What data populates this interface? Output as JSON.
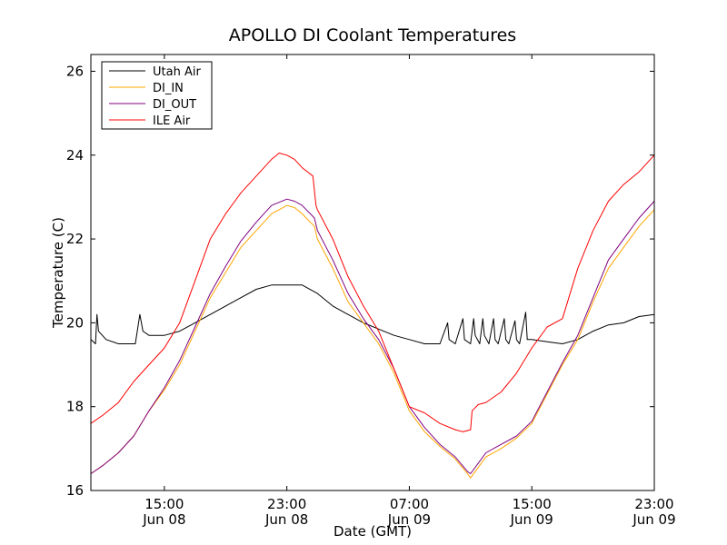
{
  "chart_data": {
    "type": "line",
    "title": "APOLLO DI Coolant Temperatures",
    "xlabel": "Date (GMT)",
    "ylabel": "Temperature (C)",
    "xlim": [
      10.2,
      47.0
    ],
    "ylim": [
      16,
      26.4
    ],
    "grid": false,
    "legend_position": "top-left",
    "x_ticks": [
      {
        "x": 15,
        "label1": "15:00",
        "label2": "Jun 08"
      },
      {
        "x": 23,
        "label1": "23:00",
        "label2": "Jun 08"
      },
      {
        "x": 31,
        "label1": "07:00",
        "label2": "Jun 09"
      },
      {
        "x": 39,
        "label1": "15:00",
        "label2": "Jun 09"
      },
      {
        "x": 47,
        "label1": "23:00",
        "label2": "Jun 09"
      }
    ],
    "y_ticks": [
      16,
      18,
      20,
      22,
      24,
      26
    ],
    "series": [
      {
        "name": "Utah Air",
        "color": "#000000",
        "x": [
          10.2,
          10.5,
          10.6,
          10.7,
          11.2,
          12.0,
          12.5,
          13.1,
          13.4,
          13.6,
          14.0,
          15.0,
          16.0,
          17.0,
          18.0,
          19.0,
          20.0,
          21.0,
          22.0,
          23.0,
          24.0,
          25.0,
          26.0,
          27.0,
          28.0,
          29.0,
          30.0,
          31.0,
          32.0,
          33.0,
          33.5,
          33.6,
          34.0,
          34.5,
          34.6,
          35.0,
          35.2,
          35.3,
          35.6,
          35.8,
          35.9,
          36.2,
          36.5,
          36.6,
          36.8,
          37.2,
          37.3,
          37.5,
          37.9,
          38.0,
          38.2,
          38.6,
          38.7,
          39.0,
          40.0,
          41.0,
          42.0,
          43.0,
          44.0,
          45.0,
          46.0,
          47.0
        ],
        "y": [
          19.6,
          19.5,
          20.2,
          19.8,
          19.6,
          19.5,
          19.5,
          19.5,
          20.2,
          19.8,
          19.7,
          19.7,
          19.8,
          20.0,
          20.2,
          20.4,
          20.6,
          20.8,
          20.9,
          20.9,
          20.9,
          20.7,
          20.4,
          20.2,
          20.0,
          19.85,
          19.7,
          19.6,
          19.5,
          19.5,
          20.0,
          19.6,
          19.5,
          20.1,
          19.6,
          19.5,
          20.1,
          19.7,
          19.5,
          20.1,
          19.7,
          19.5,
          20.1,
          19.6,
          19.5,
          20.1,
          19.6,
          19.5,
          20.05,
          19.6,
          19.5,
          20.25,
          19.6,
          19.6,
          19.55,
          19.5,
          19.6,
          19.8,
          19.95,
          20.0,
          20.15,
          20.2
        ]
      },
      {
        "name": "DI_IN",
        "color": "#ffa500",
        "x": [
          10.2,
          11.0,
          12.0,
          13.0,
          14.0,
          15.0,
          16.0,
          17.0,
          18.0,
          19.0,
          20.0,
          21.0,
          22.0,
          23.0,
          23.5,
          24.0,
          24.8,
          25.0,
          26.0,
          27.0,
          28.0,
          29.0,
          30.0,
          31.0,
          32.0,
          33.0,
          34.0,
          34.8,
          35.0,
          36.0,
          37.0,
          38.0,
          39.0,
          40.0,
          41.0,
          42.0,
          43.0,
          44.0,
          45.0,
          46.0,
          47.0
        ],
        "y": [
          16.4,
          16.6,
          16.9,
          17.3,
          17.9,
          18.4,
          19.0,
          19.8,
          20.6,
          21.2,
          21.8,
          22.2,
          22.6,
          22.8,
          22.75,
          22.6,
          22.3,
          22.0,
          21.3,
          20.5,
          20.0,
          19.5,
          18.8,
          17.9,
          17.4,
          17.05,
          16.75,
          16.4,
          16.3,
          16.8,
          17.0,
          17.25,
          17.6,
          18.3,
          19.0,
          19.6,
          20.5,
          21.3,
          21.8,
          22.3,
          22.7
        ]
      },
      {
        "name": "DI_OUT",
        "color": "#800080",
        "x": [
          10.2,
          11.0,
          12.0,
          13.0,
          14.0,
          15.0,
          16.0,
          17.0,
          18.0,
          19.0,
          20.0,
          21.0,
          22.0,
          23.0,
          23.5,
          24.0,
          24.8,
          25.0,
          26.0,
          27.0,
          28.0,
          29.0,
          30.0,
          31.0,
          32.0,
          33.0,
          34.0,
          34.8,
          35.0,
          36.0,
          37.0,
          38.0,
          39.0,
          40.0,
          41.0,
          42.0,
          43.0,
          44.0,
          45.0,
          46.0,
          47.0
        ],
        "y": [
          16.4,
          16.6,
          16.9,
          17.3,
          17.9,
          18.45,
          19.1,
          19.9,
          20.7,
          21.35,
          21.95,
          22.4,
          22.8,
          22.95,
          22.9,
          22.8,
          22.5,
          22.2,
          21.5,
          20.7,
          20.1,
          19.6,
          18.9,
          18.0,
          17.5,
          17.1,
          16.8,
          16.45,
          16.4,
          16.9,
          17.1,
          17.3,
          17.65,
          18.35,
          19.05,
          19.7,
          20.6,
          21.5,
          22.0,
          22.5,
          22.9
        ]
      },
      {
        "name": "ILE Air",
        "color": "#ff0000",
        "x": [
          10.2,
          11.0,
          12.0,
          13.0,
          14.0,
          15.0,
          16.0,
          17.0,
          18.0,
          19.0,
          20.0,
          21.0,
          22.0,
          22.5,
          23.0,
          23.5,
          24.0,
          24.7,
          24.9,
          25.0,
          26.0,
          27.0,
          28.0,
          29.0,
          30.0,
          31.0,
          32.0,
          33.0,
          34.0,
          34.5,
          35.0,
          35.1,
          35.5,
          36.0,
          37.0,
          38.0,
          39.0,
          40.0,
          41.0,
          42.0,
          43.0,
          44.0,
          45.0,
          46.0,
          47.0
        ],
        "y": [
          17.6,
          17.8,
          18.1,
          18.6,
          19.0,
          19.4,
          20.0,
          21.0,
          22.0,
          22.6,
          23.1,
          23.5,
          23.9,
          24.05,
          24.0,
          23.9,
          23.7,
          23.5,
          22.8,
          22.7,
          22.0,
          21.1,
          20.4,
          19.8,
          18.9,
          18.0,
          17.85,
          17.6,
          17.45,
          17.4,
          17.45,
          17.9,
          18.05,
          18.1,
          18.35,
          18.8,
          19.4,
          19.9,
          20.1,
          21.3,
          22.2,
          22.9,
          23.3,
          23.6,
          24.0
        ]
      }
    ]
  }
}
